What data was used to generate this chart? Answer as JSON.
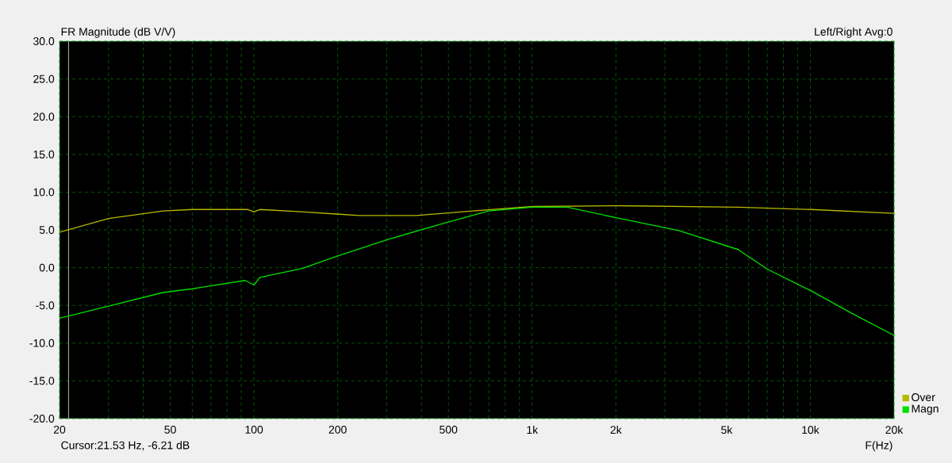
{
  "chart_data": {
    "type": "line",
    "title": "FR Magnitude (dB V/V)",
    "xlabel": "F(Hz)",
    "annotations": [
      "Left/Right  Avg:0",
      "Cursor:21.53 Hz, -6.21 dB"
    ],
    "log": "x",
    "grid": true,
    "legend": "bottom right",
    "xlim": [
      20,
      20000
    ],
    "ylim": [
      -20,
      30
    ],
    "xticks": [
      {
        "value": 20,
        "label": "20"
      },
      {
        "value": 30,
        "label": null
      },
      {
        "value": 40,
        "label": null
      },
      {
        "value": 50,
        "label": "50"
      },
      {
        "value": 60,
        "label": null
      },
      {
        "value": 70,
        "label": null
      },
      {
        "value": 80,
        "label": null
      },
      {
        "value": 90,
        "label": null
      },
      {
        "value": 100,
        "label": "100"
      },
      {
        "value": 200,
        "label": "200"
      },
      {
        "value": 300,
        "label": null
      },
      {
        "value": 400,
        "label": null
      },
      {
        "value": 500,
        "label": "500"
      },
      {
        "value": 600,
        "label": null
      },
      {
        "value": 700,
        "label": null
      },
      {
        "value": 800,
        "label": null
      },
      {
        "value": 900,
        "label": null
      },
      {
        "value": 1000,
        "label": "1k"
      },
      {
        "value": 2000,
        "label": "2k"
      },
      {
        "value": 3000,
        "label": null
      },
      {
        "value": 4000,
        "label": null
      },
      {
        "value": 5000,
        "label": "5k"
      },
      {
        "value": 6000,
        "label": null
      },
      {
        "value": 7000,
        "label": null
      },
      {
        "value": 8000,
        "label": null
      },
      {
        "value": 9000,
        "label": null
      },
      {
        "value": 10000,
        "label": "10k"
      },
      {
        "value": 20000,
        "label": "20k"
      }
    ],
    "yticks": [
      {
        "value": -20,
        "label": "-20.0"
      },
      {
        "value": -15,
        "label": "-15.0"
      },
      {
        "value": -10,
        "label": "-10.0"
      },
      {
        "value": -5,
        "label": "-5.0"
      },
      {
        "value": 0,
        "label": "0.0"
      },
      {
        "value": 5,
        "label": "5.0"
      },
      {
        "value": 10,
        "label": "10.0"
      },
      {
        "value": 15,
        "label": "15.0"
      },
      {
        "value": 20,
        "label": "20.0"
      },
      {
        "value": 25,
        "label": "25.0"
      },
      {
        "value": 30,
        "label": "30.0"
      }
    ],
    "ref_lines": [
      {
        "axis": "x",
        "value": 21.53,
        "color": "#d0d0a8"
      }
    ],
    "series": [
      {
        "name": "Over",
        "color": "#b8b800",
        "x": [
          20,
          30,
          47,
          60,
          95,
          100,
          105,
          149,
          198,
          240,
          382,
          611,
          1000,
          2070,
          5500,
          10100,
          20000
        ],
        "values": [
          4.7,
          6.5,
          7.5,
          7.7,
          7.7,
          7.4,
          7.7,
          7.4,
          7.1,
          6.9,
          6.9,
          7.5,
          8.1,
          8.2,
          8.0,
          7.7,
          7.2
        ]
      },
      {
        "name": "Magn",
        "color": "#00e000",
        "x": [
          20,
          30,
          47,
          60,
          93,
          100,
          105,
          149,
          198,
          301,
          484,
          697,
          1000,
          1340,
          2070,
          3370,
          5500,
          7000,
          10100,
          14000,
          20000
        ],
        "values": [
          -6.7,
          -5.1,
          -3.3,
          -2.8,
          -1.7,
          -2.3,
          -1.3,
          -0.1,
          1.5,
          3.7,
          5.9,
          7.5,
          8.0,
          8.0,
          6.5,
          4.9,
          2.4,
          -0.2,
          -3.1,
          -6.0,
          -9.0
        ]
      }
    ]
  }
}
